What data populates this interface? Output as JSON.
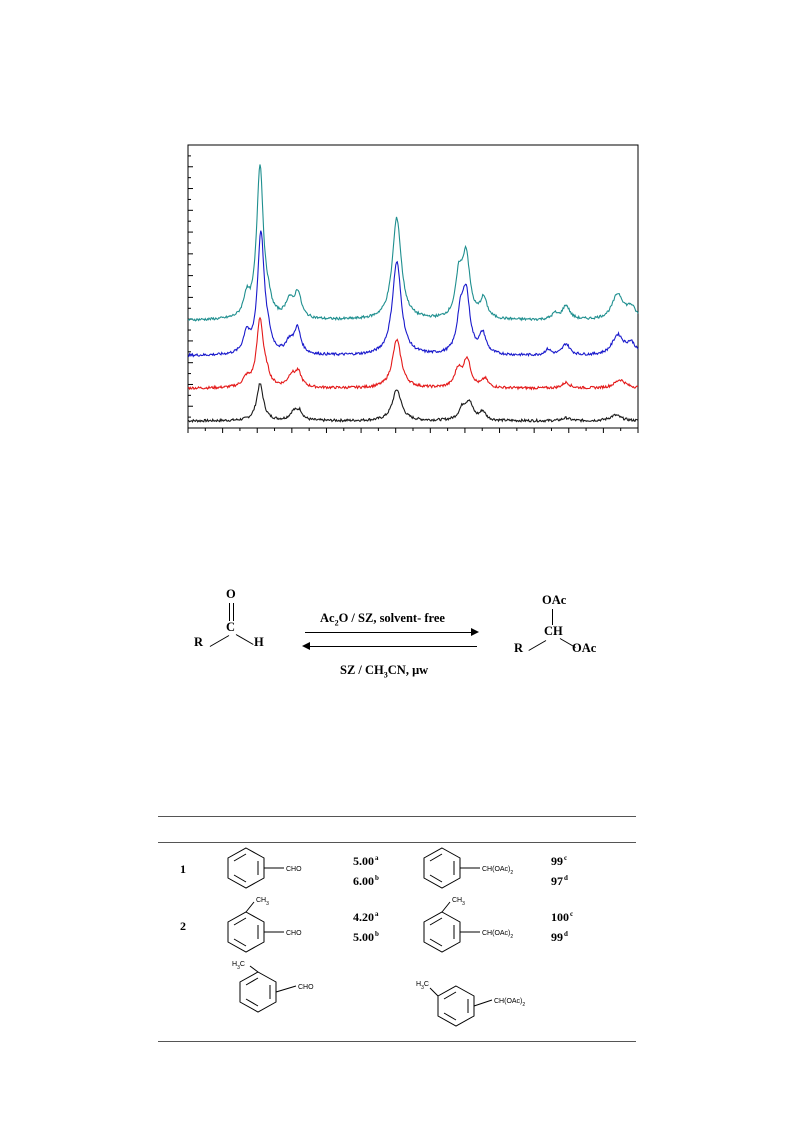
{
  "figure": {
    "chart_data": {
      "type": "line",
      "title": "",
      "xlabel": "",
      "ylabel": "",
      "xlim": [
        0,
        100
      ],
      "ylim": [
        0,
        100
      ],
      "grid": false,
      "series": [
        {
          "color": "#1a1a1a",
          "baseline": 2.5,
          "peaks": [
            [
              16.0,
              13.0,
              0.9
            ],
            [
              23.5,
              3.0,
              1.0
            ],
            [
              24.8,
              3.0,
              0.8
            ],
            [
              46.4,
              11.0,
              1.2
            ],
            [
              61.0,
              4.0,
              1.0
            ],
            [
              62.5,
              6.0,
              1.0
            ],
            [
              65.5,
              3.0,
              0.8
            ],
            [
              84.0,
              1.0,
              1.0
            ],
            [
              95.0,
              2.0,
              1.5
            ]
          ]
        },
        {
          "color": "#e41a1a",
          "baseline": 14.0,
          "peaks": [
            [
              13.0,
              3.0,
              1.0
            ],
            [
              16.0,
              24.0,
              0.9
            ],
            [
              17.5,
              3.0,
              0.8
            ],
            [
              23.0,
              4.0,
              1.0
            ],
            [
              24.5,
              5.0,
              0.9
            ],
            [
              46.4,
              17.0,
              1.2
            ],
            [
              60.0,
              6.0,
              0.9
            ],
            [
              62.0,
              10.0,
              1.0
            ],
            [
              66.0,
              3.0,
              0.8
            ],
            [
              84.0,
              2.0,
              1.0
            ],
            [
              96.0,
              3.0,
              1.5
            ]
          ]
        },
        {
          "color": "#1a1acc",
          "baseline": 25.5,
          "peaks": [
            [
              13.0,
              7.0,
              0.8
            ],
            [
              16.2,
              43.0,
              0.9
            ],
            [
              17.8,
              4.0,
              0.8
            ],
            [
              22.5,
              4.0,
              1.0
            ],
            [
              24.3,
              9.0,
              0.9
            ],
            [
              46.4,
              33.0,
              1.2
            ],
            [
              60.5,
              12.0,
              0.9
            ],
            [
              61.8,
              21.0,
              1.0
            ],
            [
              65.5,
              7.0,
              0.9
            ],
            [
              80.0,
              2.0,
              0.8
            ],
            [
              84.0,
              4.0,
              1.0
            ],
            [
              95.5,
              7.0,
              1.5
            ],
            [
              98.5,
              4.0,
              1.2
            ]
          ]
        },
        {
          "color": "#1f8f8f",
          "baseline": 38.0,
          "peaks": [
            [
              13.0,
              7.0,
              0.8
            ],
            [
              16.0,
              54.0,
              0.9
            ],
            [
              17.8,
              4.0,
              0.8
            ],
            [
              22.5,
              6.0,
              1.0
            ],
            [
              24.4,
              9.0,
              0.9
            ],
            [
              46.4,
              36.0,
              1.2
            ],
            [
              60.2,
              14.0,
              0.9
            ],
            [
              61.8,
              22.0,
              1.0
            ],
            [
              65.7,
              7.0,
              0.9
            ],
            [
              81.5,
              2.0,
              0.8
            ],
            [
              84.0,
              5.0,
              1.0
            ],
            [
              95.5,
              9.0,
              1.5
            ],
            [
              98.5,
              4.0,
              1.2
            ]
          ]
        }
      ]
    }
  },
  "scheme": {
    "reactant_o": "O",
    "reactant_c": "C",
    "reactant_r": "R",
    "reactant_h": "H",
    "forward_condition": "Ac2O / SZ, solvent- free",
    "backward_condition": "SZ / CH3CN, μw",
    "product_oac_top": "OAc",
    "product_ch": "CH",
    "product_r": "R",
    "product_oac_bottom": "OAc"
  },
  "table": {
    "rows": [
      {
        "entry": "1",
        "reactant_label": "CHO",
        "time1": "5.00",
        "time1_note": "a",
        "time2": "6.00",
        "time2_note": "b",
        "product_label": "CH(OAc)2",
        "yield1": "99",
        "yield1_note": "c",
        "yield2": "97",
        "yield2_note": "d"
      },
      {
        "entry": "2",
        "reactant_label": "CHO",
        "reactant_sub": "CH3",
        "time1": "4.20",
        "time1_note": "a",
        "time2": "5.00",
        "time2_note": "b",
        "product_label": "CH(OAc)2",
        "product_sub": "CH3",
        "yield1": "100",
        "yield1_note": "c",
        "yield2": "99",
        "yield2_note": "d"
      },
      {
        "entry": "",
        "reactant_label": "CHO",
        "reactant_sub": "H3C",
        "product_label": "CH(OAc)2",
        "product_sub": "H3C"
      }
    ]
  },
  "colors": {
    "series_black": "#1a1a1a",
    "series_red": "#e41a1a",
    "series_blue": "#1a1acc",
    "series_teal": "#1f8f8f"
  }
}
